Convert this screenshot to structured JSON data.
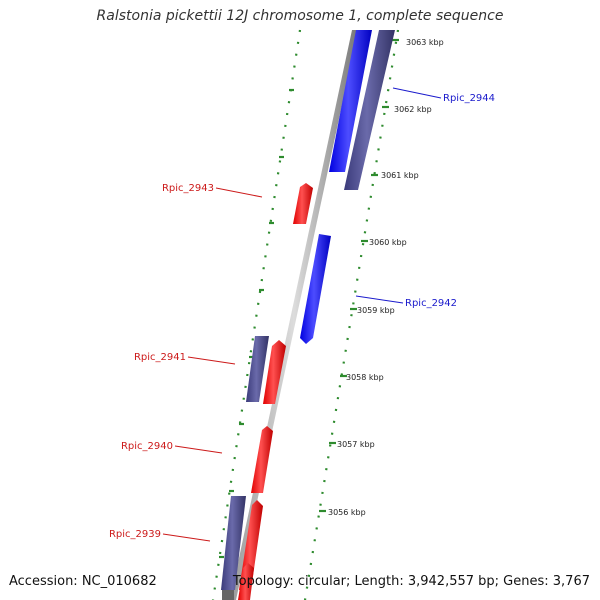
{
  "title": "Ralstonia pickettii 12J chromosome 1, complete sequence",
  "footer": {
    "accession": "Accession: NC_010682",
    "topology": "Topology: circular; Length: 3,942,557 bp; Genes: 3,767"
  },
  "colors": {
    "plus_strand": "#1a1aff",
    "minus_strand": "#4a4a8c",
    "rna_like": "#ff1a1a",
    "backbone": "#888888",
    "ticks": "#2e8b2e",
    "label_blue": "#1a1acc",
    "label_red": "#cc1a1a"
  },
  "scale_labels": [
    "3063 kbp",
    "3062 kbp",
    "3061 kbp",
    "3060 kbp",
    "3059 kbp",
    "3058 kbp",
    "3057 kbp",
    "3056 kbp"
  ],
  "gene_labels": {
    "Rpic_2944": "Rpic_2944",
    "Rpic_2943": "Rpic_2943",
    "Rpic_2942": "Rpic_2942",
    "Rpic_2941": "Rpic_2941",
    "Rpic_2940": "Rpic_2940",
    "Rpic_2939": "Rpic_2939"
  }
}
